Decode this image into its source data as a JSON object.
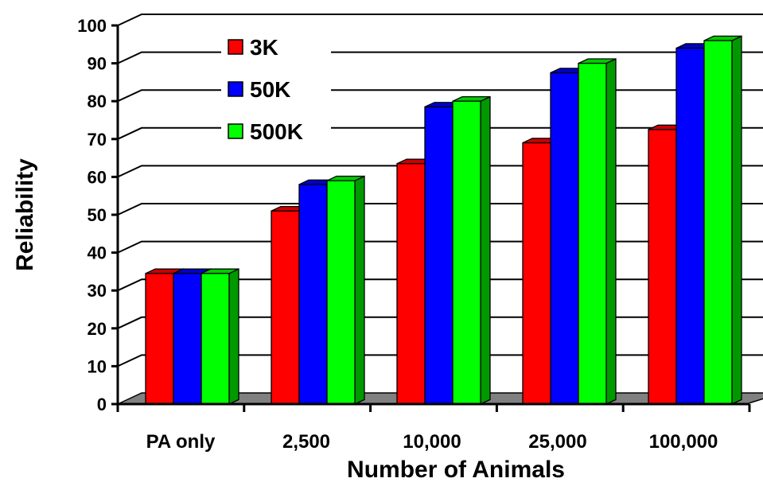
{
  "chart_data": {
    "type": "bar",
    "style": "3d-clustered",
    "categories": [
      "PA only",
      "2,500",
      "10,000",
      "25,000",
      "100,000"
    ],
    "series": [
      {
        "name": "3K",
        "color": "#ff0000",
        "values": [
          34.5,
          51,
          63.5,
          69,
          72.5
        ]
      },
      {
        "name": "50K",
        "color": "#0000ff",
        "values": [
          34.5,
          58,
          78.5,
          87.5,
          94
        ]
      },
      {
        "name": "500K",
        "color": "#00ff00",
        "values": [
          34.5,
          59,
          80,
          90,
          96
        ]
      }
    ],
    "xlabel": "Number of Animals",
    "ylabel": "Reliability",
    "ylim": [
      0,
      100
    ],
    "yticks": [
      "0",
      "10",
      "20",
      "30",
      "40",
      "50",
      "60",
      "70",
      "80",
      "90",
      "100"
    ],
    "grid": true,
    "legend": "top-left",
    "floor_color": "#808080"
  }
}
